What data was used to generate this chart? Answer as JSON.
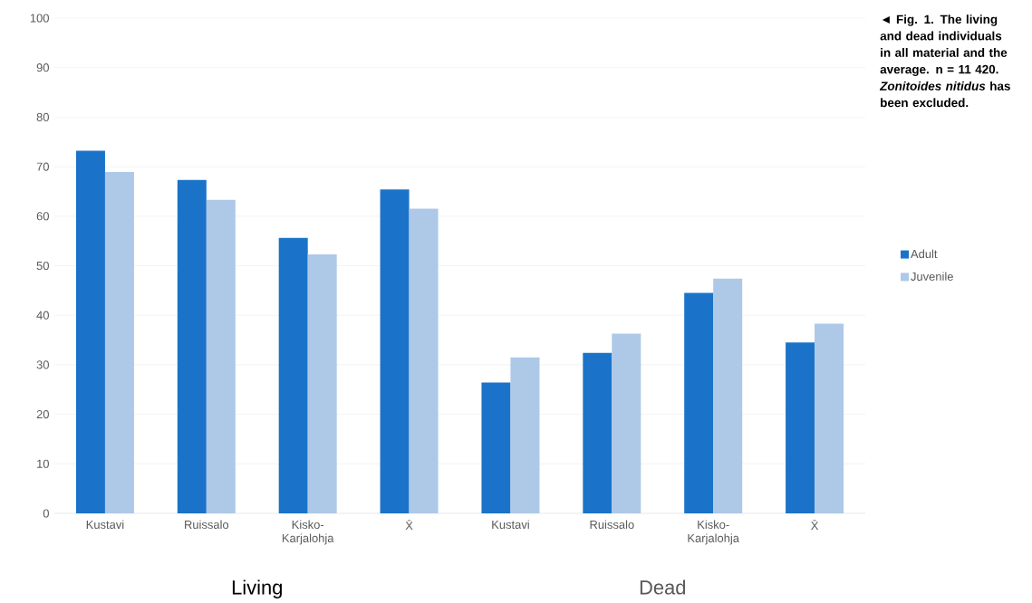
{
  "chart_data": {
    "type": "bar",
    "categories": [
      "Kustavi",
      "Ruissalo",
      "Kisko-Karjalohja",
      "X̄",
      "Kustavi",
      "Ruissalo",
      "Kisko-Karjalohja",
      "X̄"
    ],
    "series": [
      {
        "name": "Adult",
        "color": "#1a73c8",
        "values": [
          73.2,
          67.3,
          55.6,
          65.4,
          26.4,
          32.4,
          44.5,
          34.5
        ]
      },
      {
        "name": "Juvenile",
        "color": "#aec8e8",
        "values": [
          68.9,
          63.3,
          52.3,
          61.5,
          31.5,
          36.3,
          47.4,
          38.3
        ]
      }
    ],
    "ylim": [
      0,
      100
    ],
    "yticks": [
      0,
      10,
      20,
      30,
      40,
      50,
      60,
      70,
      80,
      90,
      100
    ],
    "grid": "y",
    "legend": "right",
    "annotations": [
      "◄ Fig. 1. The living and dead individuals in all material and the average. n = 11 420. *Zonitoides nitidus* has been excluded.",
      "Living",
      "Dead"
    ]
  }
}
